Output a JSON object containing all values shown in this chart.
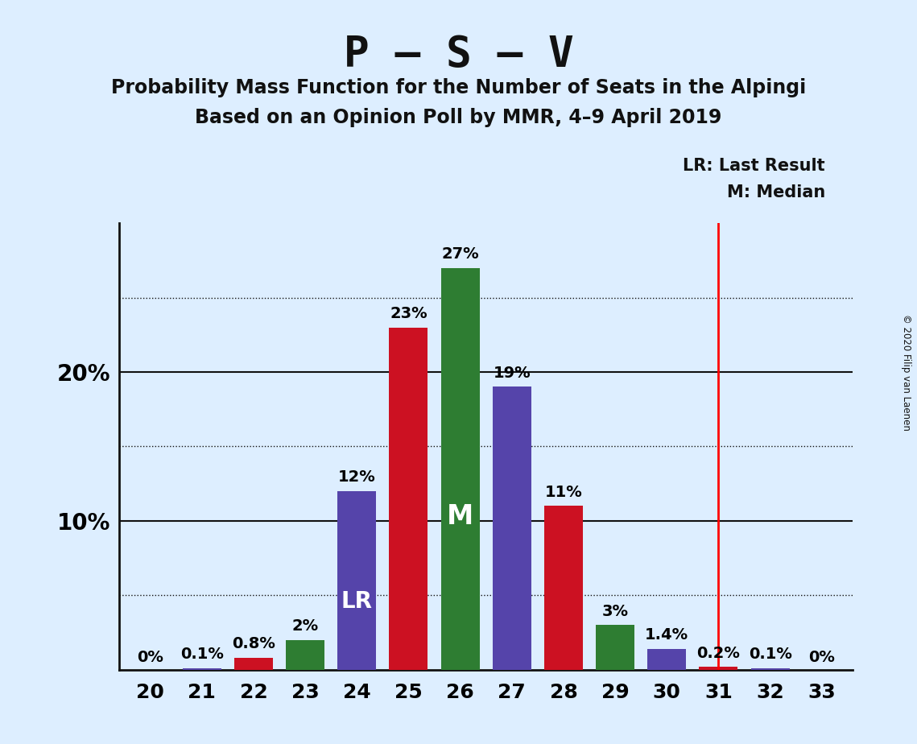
{
  "title_main": "P – S – V",
  "title_sub1": "Probability Mass Function for the Number of Seats in the Alpingi",
  "title_sub2": "Based on an Opinion Poll by MMR, 4–9 April 2019",
  "copyright": "© 2020 Filip van Laenen",
  "seats": [
    20,
    21,
    22,
    23,
    24,
    25,
    26,
    27,
    28,
    29,
    30,
    31,
    32,
    33
  ],
  "probs": [
    0.0,
    0.1,
    0.8,
    2.0,
    12.0,
    23.0,
    27.0,
    19.0,
    11.0,
    3.0,
    1.4,
    0.2,
    0.1,
    0.0
  ],
  "labels": [
    "0%",
    "0.1%",
    "0.8%",
    "2%",
    "12%",
    "23%",
    "27%",
    "19%",
    "11%",
    "3%",
    "1.4%",
    "0.2%",
    "0.1%",
    "0%"
  ],
  "bar_colors": [
    "#5544aa",
    "#5544aa",
    "#cc1122",
    "#2e7d32",
    "#5544aa",
    "#cc1122",
    "#2e7d32",
    "#5544aa",
    "#cc1122",
    "#2e7d32",
    "#5544aa",
    "#cc1122",
    "#5544aa",
    "#5544aa"
  ],
  "lr_seat": 24,
  "median_seat": 26,
  "last_result_line": 31,
  "solid_yticks": [
    10,
    20
  ],
  "dotted_yticks": [
    5,
    15,
    25
  ],
  "background_color": "#ddeeff",
  "ymax": 30,
  "legend_lr_text": "LR: Last Result",
  "legend_m_text": "M: Median",
  "label_fontsize": 14,
  "tick_fontsize": 20,
  "title_fontsize": 38,
  "sub_fontsize": 17
}
